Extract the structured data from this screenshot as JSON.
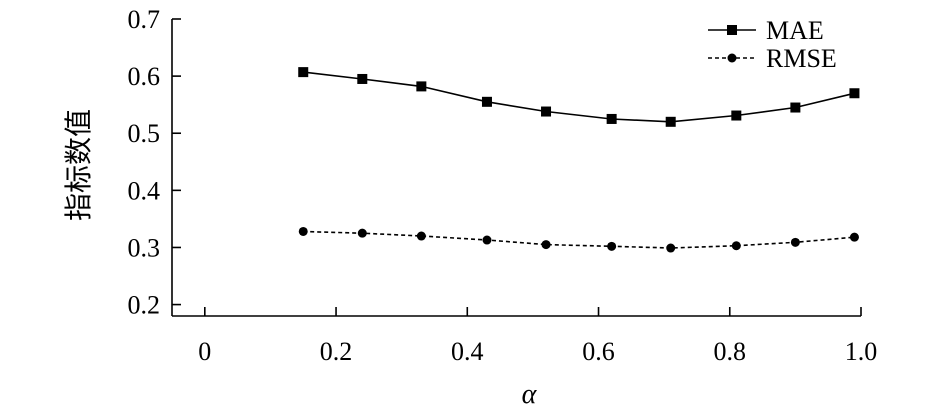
{
  "chart_data": {
    "type": "line",
    "title": "",
    "xlabel": "α",
    "ylabel": "指标数值",
    "xlim": [
      -0.05,
      1.0
    ],
    "ylim": [
      0.18,
      0.7
    ],
    "xticks": [
      0,
      0.2,
      0.4,
      0.6,
      0.8,
      1.0
    ],
    "xtick_labels": [
      "0",
      "0.2",
      "0.4",
      "0.6",
      "0.8",
      "1.0"
    ],
    "yticks": [
      0.2,
      0.3,
      0.4,
      0.5,
      0.6,
      0.7
    ],
    "ytick_labels": [
      "0.2",
      "0.3",
      "0.4",
      "0.5",
      "0.6",
      "0.7"
    ],
    "grid": false,
    "legend_position": "top-right",
    "x": [
      0.15,
      0.24,
      0.33,
      0.43,
      0.52,
      0.62,
      0.71,
      0.81,
      0.9,
      0.99
    ],
    "series": [
      {
        "name": "MAE",
        "values": [
          0.607,
          0.595,
          0.582,
          0.555,
          0.538,
          0.525,
          0.52,
          0.531,
          0.545,
          0.57
        ],
        "marker": "square",
        "line_style": "solid",
        "color": "#000000"
      },
      {
        "name": "RMSE",
        "values": [
          0.328,
          0.325,
          0.32,
          0.313,
          0.305,
          0.302,
          0.299,
          0.303,
          0.309,
          0.318
        ],
        "marker": "circle",
        "line_style": "dashed",
        "color": "#000000"
      }
    ]
  }
}
